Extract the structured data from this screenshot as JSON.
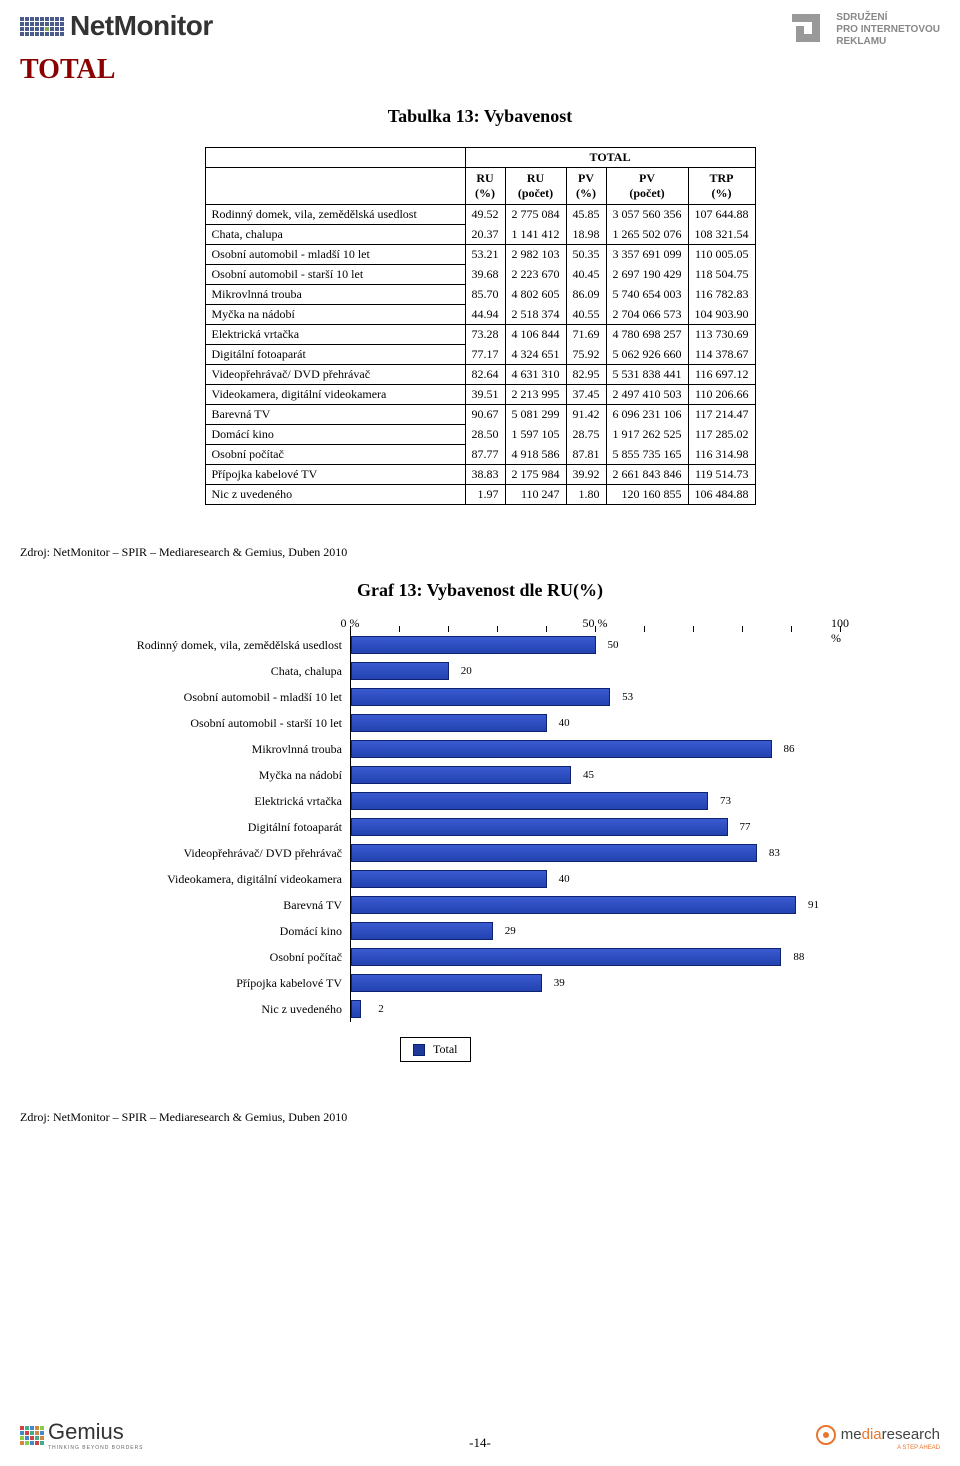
{
  "header": {
    "netmonitor_label": "NetMonitor",
    "spir_line1": "SDRUŽENÍ",
    "spir_line2": "PRO INTERNETOVOU",
    "spir_line3": "REKLAMU"
  },
  "total_heading": "TOTAL",
  "table": {
    "title": "Tabulka 13: Vybavenost",
    "super_header": "TOTAL",
    "columns": [
      "RU (%)",
      "RU (počet)",
      "PV (%)",
      "PV (počet)",
      "TRP (%)"
    ],
    "groups": [
      {
        "rows": [
          {
            "label": "Rodinný domek, vila, zemědělská usedlost",
            "cells": [
              "49.52",
              "2 775 084",
              "45.85",
              "3 057 560 356",
              "107 644.88"
            ]
          },
          {
            "label": "Chata, chalupa",
            "cells": [
              "20.37",
              "1 141 412",
              "18.98",
              "1 265 502 076",
              "108 321.54"
            ]
          }
        ]
      },
      {
        "rows": [
          {
            "label": "Osobní automobil - mladší 10 let",
            "cells": [
              "53.21",
              "2 982 103",
              "50.35",
              "3 357 691 099",
              "110 005.05"
            ]
          },
          {
            "label": "Osobní automobil - starší 10 let",
            "cells": [
              "39.68",
              "2 223 670",
              "40.45",
              "2 697 190 429",
              "118 504.75"
            ]
          },
          {
            "label": "Mikrovlnná trouba",
            "cells": [
              "85.70",
              "4 802 605",
              "86.09",
              "5 740 654 003",
              "116 782.83"
            ]
          },
          {
            "label": "Myčka na nádobí",
            "cells": [
              "44.94",
              "2 518 374",
              "40.55",
              "2 704 066 573",
              "104 903.90"
            ]
          }
        ]
      },
      {
        "rows": [
          {
            "label": "Elektrická vrtačka",
            "cells": [
              "73.28",
              "4 106 844",
              "71.69",
              "4 780 698 257",
              "113 730.69"
            ]
          },
          {
            "label": "Digitální fotoaparát",
            "cells": [
              "77.17",
              "4 324 651",
              "75.92",
              "5 062 926 660",
              "114 378.67"
            ]
          }
        ]
      },
      {
        "rows": [
          {
            "label": "Videopřehrávač/ DVD přehrávač",
            "cells": [
              "82.64",
              "4 631 310",
              "82.95",
              "5 531 838 441",
              "116 697.12"
            ]
          }
        ]
      },
      {
        "rows": [
          {
            "label": "Videokamera, digitální videokamera",
            "cells": [
              "39.51",
              "2 213 995",
              "37.45",
              "2 497 410 503",
              "110 206.66"
            ]
          }
        ]
      },
      {
        "rows": [
          {
            "label": "Barevná TV",
            "cells": [
              "90.67",
              "5 081 299",
              "91.42",
              "6 096 231 106",
              "117 214.47"
            ]
          },
          {
            "label": "Domácí kino",
            "cells": [
              "28.50",
              "1 597 105",
              "28.75",
              "1 917 262 525",
              "117 285.02"
            ]
          },
          {
            "label": "Osobní počítač",
            "cells": [
              "87.77",
              "4 918 586",
              "87.81",
              "5 855 735 165",
              "116 314.98"
            ]
          }
        ]
      },
      {
        "rows": [
          {
            "label": "Přípojka kabelové TV",
            "cells": [
              "38.83",
              "2 175 984",
              "39.92",
              "2 661 843 846",
              "119 514.73"
            ]
          }
        ]
      },
      {
        "rows": [
          {
            "label": "Nic z uvedeného",
            "cells": [
              "1.97",
              "110 247",
              "1.80",
              "120 160 855",
              "106 484.88"
            ]
          }
        ]
      }
    ]
  },
  "source_text": "Zdroj: NetMonitor – SPIR – Mediaresearch & Gemius, Duben 2010",
  "chart": {
    "title": "Graf 13: Vybavenost dle RU(%)",
    "type": "horizontal-bar",
    "x_min": 0,
    "x_max": 100,
    "axis_ticks": [
      {
        "pos": 0,
        "label": "0 %"
      },
      {
        "pos": 50,
        "label": "50 %"
      },
      {
        "pos": 100,
        "label": "100 %"
      }
    ],
    "minor_ticks": [
      0,
      10,
      20,
      30,
      40,
      50,
      60,
      70,
      80,
      90,
      100
    ],
    "bar_color": "#2243b0",
    "bar_border": "#0e2270",
    "bars": [
      {
        "label": "Rodinný domek, vila, zemědělská usedlost",
        "value": 50
      },
      {
        "label": "Chata, chalupa",
        "value": 20
      },
      {
        "label": "Osobní automobil - mladší 10 let",
        "value": 53
      },
      {
        "label": "Osobní automobil - starší 10 let",
        "value": 40
      },
      {
        "label": "Mikrovlnná trouba",
        "value": 86
      },
      {
        "label": "Myčka na nádobí",
        "value": 45
      },
      {
        "label": "Elektrická vrtačka",
        "value": 73
      },
      {
        "label": "Digitální fotoaparát",
        "value": 77
      },
      {
        "label": "Videopřehrávač/ DVD přehrávač",
        "value": 83
      },
      {
        "label": "Videokamera, digitální videokamera",
        "value": 40
      },
      {
        "label": "Barevná TV",
        "value": 91
      },
      {
        "label": "Domácí kino",
        "value": 29
      },
      {
        "label": "Osobní počítač",
        "value": 88
      },
      {
        "label": "Přípojka kabelové TV",
        "value": 39
      },
      {
        "label": "Nic z uvedeného",
        "value": 2
      }
    ],
    "legend_label": "Total"
  },
  "footer": {
    "page_number": "-14-",
    "gemius": "Gemius",
    "gemius_sub": "THINKING BEYOND BORDERS",
    "media_prefix": "me",
    "media_mid": "dia",
    "media_suffix": "research",
    "media_sub": "A STEP AHEAD"
  }
}
